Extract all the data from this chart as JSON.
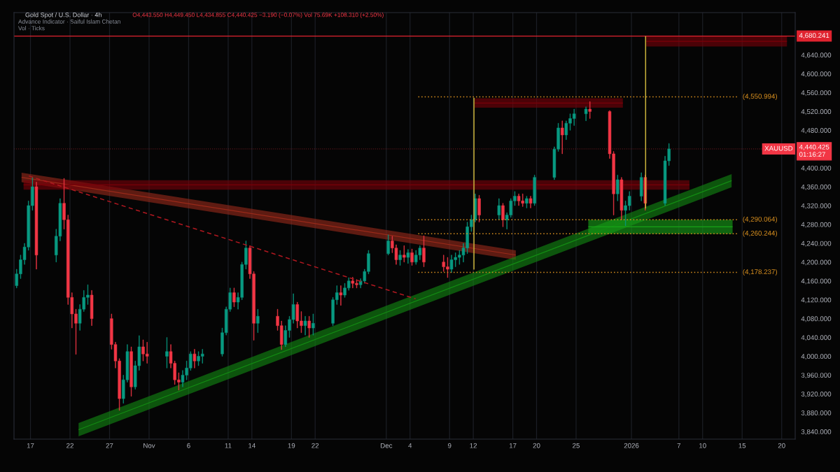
{
  "chart_data": {
    "type": "candlestick",
    "title": "Gold Spot / U.S. Dollar · 4h",
    "subtitle": "O4,443.550 H4,449.450 L4,434.855 C4,440.425 −3.190 (−0.07%) Vol 75.69K +108.310 (+2.50%)",
    "annotations": [
      "Advance Indicator · Saiful Islam Chetan",
      "Vol · Ticks"
    ],
    "x": [
      "2025-10-15T06:00",
      "2025-10-15T18:00",
      "2025-10-16T06:00",
      "2025-10-16T18:00",
      "2025-10-17T06:00",
      "2025-10-17T18:00",
      "2025-10-20T06:00",
      "2025-10-20T18:00",
      "2025-10-21T06:00",
      "2025-10-21T18:00",
      "2025-10-22T06:00",
      "2025-10-22T18:00",
      "2025-10-23T06:00",
      "2025-10-23T18:00",
      "2025-10-24T06:00",
      "2025-10-24T18:00",
      "2025-10-27T06:00",
      "2025-10-27T18:00",
      "2025-10-28T06:00",
      "2025-10-28T18:00",
      "2025-10-29T06:00",
      "2025-10-29T18:00",
      "2025-10-30T06:00",
      "2025-10-30T18:00",
      "2025-10-31T06:00",
      "2025-10-31T18:00",
      "2025-11-03T06:00",
      "2025-11-03T18:00",
      "2025-11-04T06:00",
      "2025-11-04T18:00",
      "2025-11-05T06:00",
      "2025-11-05T18:00",
      "2025-11-06T06:00",
      "2025-11-06T18:00",
      "2025-11-07T06:00",
      "2025-11-07T18:00",
      "2025-11-10T06:00",
      "2025-11-10T18:00",
      "2025-11-11T06:00",
      "2025-11-11T18:00",
      "2025-11-12T06:00",
      "2025-11-12T18:00",
      "2025-11-13T06:00",
      "2025-11-13T18:00",
      "2025-11-14T06:00",
      "2025-11-14T18:00",
      "2025-11-17T06:00",
      "2025-11-17T18:00",
      "2025-11-18T06:00",
      "2025-11-18T18:00",
      "2025-11-19T06:00",
      "2025-11-19T18:00",
      "2025-11-20T06:00",
      "2025-11-20T18:00",
      "2025-11-21T06:00",
      "2025-11-21T18:00",
      "2025-11-24T06:00",
      "2025-11-24T18:00",
      "2025-11-25T06:00",
      "2025-11-25T18:00",
      "2025-11-26T06:00",
      "2025-11-26T18:00",
      "2025-11-27T06:00",
      "2025-11-27T18:00",
      "2025-11-28T06:00",
      "2025-11-28T18:00",
      "2025-12-01T06:00",
      "2025-12-01T18:00",
      "2025-12-02T06:00",
      "2025-12-02T18:00",
      "2025-12-03T06:00",
      "2025-12-03T18:00",
      "2025-12-04T06:00",
      "2025-12-04T18:00",
      "2025-12-05T06:00",
      "2025-12-05T18:00",
      "2025-12-08T06:00",
      "2025-12-08T18:00",
      "2025-12-09T06:00",
      "2025-12-09T18:00",
      "2025-12-10T06:00",
      "2025-12-10T18:00",
      "2025-12-11T06:00",
      "2025-12-11T18:00",
      "2025-12-12T06:00",
      "2025-12-12T18:00",
      "2025-12-15T06:00",
      "2025-12-15T18:00",
      "2025-12-16T06:00",
      "2025-12-16T18:00",
      "2025-12-17T06:00",
      "2025-12-17T18:00",
      "2025-12-18T06:00",
      "2025-12-18T18:00",
      "2025-12-19T06:00",
      "2025-12-19T18:00",
      "2025-12-22T06:00",
      "2025-12-22T18:00",
      "2025-12-23T06:00",
      "2025-12-23T18:00",
      "2025-12-24T06:00",
      "2025-12-24T18:00",
      "2025-12-26T06:00",
      "2025-12-26T18:00",
      "2025-12-29T06:00",
      "2025-12-29T18:00",
      "2025-12-30T06:00",
      "2025-12-30T18:00",
      "2025-12-31T06:00",
      "2025-12-31T18:00",
      "2026-01-02T06:00",
      "2026-01-02T18:00",
      "2026-01-05T06:00",
      "2026-01-05T18:00"
    ],
    "ohlc": [
      [
        4150,
        4185,
        4145,
        4175
      ],
      [
        4175,
        4215,
        4165,
        4205
      ],
      [
        4205,
        4240,
        4195,
        4232
      ],
      [
        4232,
        4330,
        4225,
        4320
      ],
      [
        4320,
        4381,
        4310,
        4360
      ],
      [
        4360,
        4370,
        4185,
        4215
      ],
      [
        4215,
        4270,
        4200,
        4255
      ],
      [
        4255,
        4335,
        4245,
        4325
      ],
      [
        4325,
        4378,
        4270,
        4290
      ],
      [
        4290,
        4300,
        4110,
        4125
      ],
      [
        4125,
        4135,
        4060,
        4090
      ],
      [
        4090,
        4100,
        4004,
        4070
      ],
      [
        4070,
        4110,
        4055,
        4100
      ],
      [
        4100,
        4140,
        4095,
        4125
      ],
      [
        4125,
        4152,
        4110,
        4130
      ],
      [
        4130,
        4140,
        4065,
        4080
      ],
      [
        4080,
        4090,
        4015,
        4025
      ],
      [
        4025,
        4030,
        3975,
        3990
      ],
      [
        3990,
        3995,
        3885,
        3910
      ],
      [
        3910,
        3960,
        3900,
        3950
      ],
      [
        3950,
        4025,
        3945,
        4010
      ],
      [
        4010,
        4020,
        3915,
        3935
      ],
      [
        3935,
        3990,
        3930,
        3980
      ],
      [
        3980,
        4044,
        3970,
        4020
      ],
      [
        4020,
        4035,
        3990,
        4005
      ],
      [
        4005,
        4030,
        3985,
        4000
      ],
      [
        4000,
        4040,
        3975,
        4010
      ],
      [
        4010,
        4025,
        3975,
        3985
      ],
      [
        3985,
        3990,
        3940,
        3950
      ],
      [
        3950,
        3965,
        3928,
        3945
      ],
      [
        3945,
        3970,
        3935,
        3960
      ],
      [
        3960,
        3990,
        3950,
        3975
      ],
      [
        3975,
        4010,
        3970,
        4005
      ],
      [
        4005,
        4015,
        3975,
        3990
      ],
      [
        3990,
        4010,
        3980,
        4000
      ],
      [
        4000,
        4015,
        3985,
        4005
      ],
      [
        4005,
        4060,
        4000,
        4050
      ],
      [
        4050,
        4105,
        4045,
        4100
      ],
      [
        4100,
        4145,
        4095,
        4135
      ],
      [
        4135,
        4145,
        4105,
        4115
      ],
      [
        4115,
        4135,
        4100,
        4125
      ],
      [
        4125,
        4200,
        4120,
        4195
      ],
      [
        4195,
        4245,
        4185,
        4230
      ],
      [
        4230,
        4235,
        4165,
        4175
      ],
      [
        4175,
        4180,
        4034,
        4070
      ],
      [
        4070,
        4100,
        4050,
        4085
      ],
      [
        4085,
        4100,
        4055,
        4065
      ],
      [
        4065,
        4075,
        4014,
        4025
      ],
      [
        4025,
        4065,
        4020,
        4055
      ],
      [
        4055,
        4085,
        4040,
        4078
      ],
      [
        4078,
        4133,
        4070,
        4110
      ],
      [
        4110,
        4115,
        4060,
        4075
      ],
      [
        4075,
        4095,
        4050,
        4065
      ],
      [
        4065,
        4085,
        4045,
        4075
      ],
      [
        4075,
        4085,
        4040,
        4060
      ],
      [
        4060,
        4090,
        4045,
        4070
      ],
      [
        4070,
        4125,
        4065,
        4120
      ],
      [
        4120,
        4150,
        4110,
        4135
      ],
      [
        4135,
        4150,
        4108,
        4130
      ],
      [
        4130,
        4155,
        4125,
        4145
      ],
      [
        4145,
        4167,
        4140,
        4160
      ],
      [
        4160,
        4168,
        4145,
        4155
      ],
      [
        4155,
        4163,
        4145,
        4152
      ],
      [
        4152,
        4165,
        4145,
        4160
      ],
      [
        4160,
        4185,
        4155,
        4180
      ],
      [
        4180,
        4225,
        4175,
        4218
      ],
      [
        4218,
        4258,
        4215,
        4245
      ],
      [
        4245,
        4255,
        4220,
        4230
      ],
      [
        4230,
        4237,
        4195,
        4205
      ],
      [
        4205,
        4225,
        4193,
        4215
      ],
      [
        4215,
        4235,
        4200,
        4210
      ],
      [
        4210,
        4227,
        4197,
        4220
      ],
      [
        4220,
        4228,
        4193,
        4200
      ],
      [
        4200,
        4225,
        4195,
        4215
      ],
      [
        4215,
        4235,
        4205,
        4230
      ],
      [
        4230,
        4256,
        4190,
        4200
      ],
      [
        4200,
        4215,
        4180,
        4190
      ],
      [
        4190,
        4210,
        4167,
        4185
      ],
      [
        4185,
        4215,
        4178,
        4205
      ],
      [
        4205,
        4220,
        4190,
        4210
      ],
      [
        4210,
        4225,
        4195,
        4215
      ],
      [
        4215,
        4240,
        4200,
        4230
      ],
      [
        4230,
        4285,
        4218,
        4275
      ],
      [
        4275,
        4300,
        4265,
        4290
      ],
      [
        4290,
        4345,
        4285,
        4335
      ],
      [
        4335,
        4342,
        4285,
        4300
      ],
      [
        4300,
        4335,
        4290,
        4320
      ],
      [
        4320,
        4325,
        4275,
        4290
      ],
      [
        4290,
        4305,
        4270,
        4300
      ],
      [
        4300,
        4335,
        4295,
        4330
      ],
      [
        4330,
        4350,
        4320,
        4340
      ],
      [
        4340,
        4345,
        4320,
        4330
      ],
      [
        4330,
        4345,
        4318,
        4325
      ],
      [
        4325,
        4340,
        4315,
        4335
      ],
      [
        4335,
        4340,
        4315,
        4325
      ],
      [
        4325,
        4385,
        4320,
        4380
      ],
      [
        4380,
        4445,
        4375,
        4440
      ],
      [
        4440,
        4495,
        4435,
        4485
      ],
      [
        4485,
        4500,
        4430,
        4470
      ],
      [
        4470,
        4500,
        4460,
        4495
      ],
      [
        4495,
        4515,
        4480,
        4505
      ],
      [
        4505,
        4525,
        4490,
        4515
      ],
      [
        4515,
        4530,
        4500,
        4525
      ],
      [
        4525,
        4541,
        4505,
        4520
      ],
      [
        4520,
        4522,
        4420,
        4430
      ],
      [
        4430,
        4435,
        4300,
        4345
      ],
      [
        4345,
        4385,
        4330,
        4375
      ],
      [
        4375,
        4380,
        4290,
        4310
      ],
      [
        4310,
        4330,
        4277,
        4320
      ],
      [
        4320,
        4350,
        4310,
        4340
      ],
      [
        4340,
        4390,
        4330,
        4380
      ],
      [
        4380,
        4385,
        4310,
        4325
      ],
      [
        4325,
        4425,
        4320,
        4415
      ],
      [
        4415,
        4452,
        4405,
        4440.425
      ]
    ],
    "colors": [
      "#089981",
      "#089981",
      "#089981",
      "#089981",
      "#089981",
      "#f23645",
      "#089981",
      "#089981",
      "#f23645",
      "#f23645",
      "#f23645",
      "#f23645",
      "#089981",
      "#089981",
      "#089981",
      "#f23645",
      "#f23645",
      "#f23645",
      "#f23645",
      "#089981",
      "#089981",
      "#f23645",
      "#089981",
      "#089981",
      "#f23645",
      "#f23645",
      "#089981",
      "#f23645",
      "#f23645",
      "#f23645",
      "#089981",
      "#089981",
      "#089981",
      "#f23645",
      "#089981",
      "#089981",
      "#089981",
      "#089981",
      "#089981",
      "#f23645",
      "#089981",
      "#089981",
      "#089981",
      "#f23645",
      "#f23645",
      "#089981",
      "#f23645",
      "#f23645",
      "#089981",
      "#089981",
      "#089981",
      "#f23645",
      "#f23645",
      "#089981",
      "#f23645",
      "#089981",
      "#089981",
      "#089981",
      "#f23645",
      "#089981",
      "#089981",
      "#f23645",
      "#f23645",
      "#089981",
      "#089981",
      "#089981",
      "#089981",
      "#f23645",
      "#f23645",
      "#089981",
      "#f23645",
      "#089981",
      "#f23645",
      "#089981",
      "#089981",
      "#f23645",
      "#f23645",
      "#f23645",
      "#089981",
      "#089981",
      "#089981",
      "#089981",
      "#089981",
      "#089981",
      "#089981",
      "#f23645",
      "#089981",
      "#f23645",
      "#089981",
      "#089981",
      "#089981",
      "#f23645",
      "#f23645",
      "#089981",
      "#f23645",
      "#089981",
      "#089981",
      "#089981",
      "#f23645",
      "#089981",
      "#089981",
      "#089981",
      "#089981",
      "#f23645",
      "#f23645",
      "#f23645",
      "#089981",
      "#f23645",
      "#089981",
      "#089981",
      "#089981",
      "#f23645",
      "#089981",
      "#089981"
    ],
    "series": [
      {
        "type": "line",
        "x": [
          "2025-10-15T21:00",
          "2025-12-17T09:00"
        ],
        "values": [
          4380,
          4215
        ],
        "lower": [
          4370,
          4205
        ],
        "upper": [
          4390,
          4225
        ],
        "color": "#9a2a1a"
      },
      {
        "type": "line",
        "x": [
          "2025-10-23T02:00",
          "2026-01-13T16:00"
        ],
        "values": [
          3844,
          4373
        ],
        "lower": [
          3830,
          4359
        ],
        "upper": [
          3858,
          4387
        ],
        "color": "#138a13"
      },
      {
        "type": "line",
        "x": [
          "2025-10-16T03:00",
          "2026-01-08T08:00"
        ],
        "values": [
          4364,
          4364
        ],
        "lower": [
          4354,
          4354
        ],
        "upper": [
          4374,
          4374
        ],
        "color": "#7a0008"
      },
      {
        "type": "line",
        "x": [
          "2025-12-12T04:00",
          "2025-12-30T22:00"
        ],
        "values": [
          4538,
          4538
        ],
        "lower": [
          4528,
          4528
        ],
        "upper": [
          4548,
          4548
        ],
        "color": "#7a0008"
      },
      {
        "type": "line",
        "x": [
          "2026-01-02T21:00",
          "2026-01-20T16:00"
        ],
        "values": [
          4669,
          4669
        ],
        "lower": [
          4658,
          4658
        ],
        "upper": [
          4680,
          4680
        ],
        "color": "#7a0008"
      },
      {
        "type": "line",
        "x": [
          "2025-12-26T13:00",
          "2026-01-13T19:00"
        ],
        "values": [
          4275,
          4275
        ],
        "lower": [
          4260,
          4260
        ],
        "upper": [
          4290,
          4290
        ],
        "color": "#17a317"
      },
      {
        "type": "line",
        "x": [
          "2025-10-16T19:00",
          "2025-12-04T17:00"
        ],
        "values": [
          4383,
          4122
        ],
        "color": "#b01820",
        "line_style": "dashed"
      },
      {
        "type": "line",
        "name": "(4,550.994)",
        "x": [
          "2025-12-05T01:00",
          "2026-01-14T11:00"
        ],
        "values": [
          4550.994,
          4550.994
        ],
        "color": "#d9901f",
        "line_style": "dotted"
      },
      {
        "type": "line",
        "name": "(4,290.064)",
        "x": [
          "2025-12-05T01:00",
          "2026-01-14T11:00"
        ],
        "values": [
          4290.064,
          4290.064
        ],
        "color": "#d9901f",
        "line_style": "dotted"
      },
      {
        "type": "line",
        "name": "(4,260.244)",
        "x": [
          "2025-12-05T01:00",
          "2026-01-14T11:00"
        ],
        "values": [
          4260.244,
          4260.244
        ],
        "color": "#d9901f",
        "line_style": "dotted"
      },
      {
        "type": "line",
        "name": "(4,178.237)",
        "x": [
          "2025-12-05T01:00",
          "2026-01-14T11:00"
        ],
        "values": [
          4178.237,
          4178.237
        ],
        "color": "#d9901f",
        "line_style": "dotted"
      },
      {
        "type": "line",
        "x": [
          "2025-12-12T02:00",
          "2025-12-12T02:00"
        ],
        "values": [
          4184,
          4549
        ],
        "color": "#c9b23a"
      },
      {
        "type": "line",
        "x": [
          "2026-01-02T19:00",
          "2026-01-02T19:00"
        ],
        "values": [
          4314,
          4680
        ],
        "color": "#c9b23a"
      }
    ],
    "ref_lines": [
      {
        "axis": "y",
        "value": 4680.241,
        "label": "4,680.241",
        "color": "#e0232f",
        "line_style": "solid"
      },
      {
        "axis": "y",
        "value": 4440.425,
        "label": "XAUUSD\n4,440.425\n01:16:27",
        "color": "#f23645",
        "line_style": "dotted"
      }
    ],
    "xlim": [
      "2025-10-14T22:00",
      "2026-01-21T17:00"
    ],
    "xticks": [
      {
        "value": "2025-10-17",
        "label": "17"
      },
      {
        "value": "2025-10-22",
        "label": "22"
      },
      {
        "value": "2025-10-27",
        "label": "27"
      },
      {
        "value": "2025-11-01",
        "label": "Nov"
      },
      {
        "value": "2025-11-06",
        "label": "6"
      },
      {
        "value": "2025-11-11",
        "label": "11"
      },
      {
        "value": "2025-11-14",
        "label": "14"
      },
      {
        "value": "2025-11-19",
        "label": "19"
      },
      {
        "value": "2025-11-22",
        "label": "22"
      },
      {
        "value": "2025-12-01",
        "label": "Dec"
      },
      {
        "value": "2025-12-04",
        "label": "4"
      },
      {
        "value": "2025-12-09",
        "label": "9"
      },
      {
        "value": "2025-12-12",
        "label": "12"
      },
      {
        "value": "2025-12-17",
        "label": "17"
      },
      {
        "value": "2025-12-20",
        "label": "20"
      },
      {
        "value": "2025-12-25",
        "label": "25"
      },
      {
        "value": "2026-01-01",
        "label": "2026"
      },
      {
        "value": "2026-01-07",
        "label": "7"
      },
      {
        "value": "2026-01-10",
        "label": "10"
      },
      {
        "value": "2026-01-15",
        "label": "15"
      },
      {
        "value": "2026-01-20",
        "label": "20"
      }
    ],
    "ylim": [
      3824,
      4730
    ],
    "yticks": [
      {
        "value": 3840,
        "label": "3,840.000"
      },
      {
        "value": 3880,
        "label": "3,880.000"
      },
      {
        "value": 3920,
        "label": "3,920.000"
      },
      {
        "value": 3960,
        "label": "3,960.000"
      },
      {
        "value": 4000,
        "label": "4,000.000"
      },
      {
        "value": 4040,
        "label": "4,040.000"
      },
      {
        "value": 4080,
        "label": "4,080.000"
      },
      {
        "value": 4120,
        "label": "4,120.000"
      },
      {
        "value": 4160,
        "label": "4,160.000"
      },
      {
        "value": 4200,
        "label": "4,200.000"
      },
      {
        "value": 4240,
        "label": "4,240.000"
      },
      {
        "value": 4280,
        "label": "4,280.000"
      },
      {
        "value": 4320,
        "label": "4,320.000"
      },
      {
        "value": 4360,
        "label": "4,360.000"
      },
      {
        "value": 4400,
        "label": "4,400.000"
      },
      {
        "value": 4480,
        "label": "4,480.000"
      },
      {
        "value": 4520,
        "label": "4,520.000"
      },
      {
        "value": 4560,
        "label": "4,560.000"
      },
      {
        "value": 4600,
        "label": "4,600.000"
      },
      {
        "value": 4640,
        "label": "4,640.000"
      }
    ],
    "grid": "x"
  }
}
